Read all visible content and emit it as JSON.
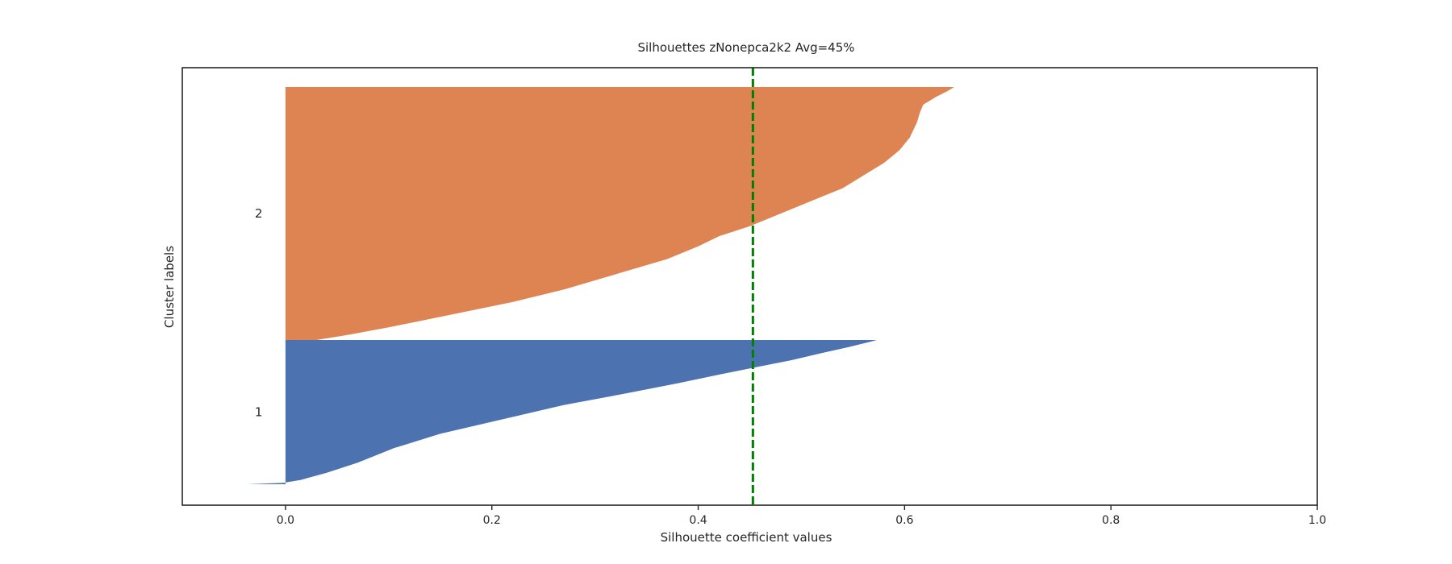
{
  "chart_data": {
    "type": "bar",
    "title": "Silhouettes zNonepca2k2 Avg=45%",
    "xlabel": "Silhouette coefficient values",
    "ylabel": "Cluster labels",
    "xlim": [
      -0.1,
      1.0
    ],
    "xticks": [
      0.0,
      0.2,
      0.4,
      0.6,
      0.8,
      1.0
    ],
    "xtick_labels": [
      "0.0",
      "0.2",
      "0.4",
      "0.6",
      "0.8",
      "1.0"
    ],
    "average_silhouette": 0.453,
    "grid": false,
    "clusters": [
      {
        "label": "1",
        "color": "#4c72b0",
        "size_fraction": 0.363,
        "profile": [
          [
            0.0,
            -0.037
          ],
          [
            0.01,
            -0.002
          ],
          [
            0.03,
            0.015
          ],
          [
            0.08,
            0.04
          ],
          [
            0.15,
            0.07
          ],
          [
            0.25,
            0.105
          ],
          [
            0.35,
            0.15
          ],
          [
            0.45,
            0.21
          ],
          [
            0.55,
            0.27
          ],
          [
            0.63,
            0.33
          ],
          [
            0.7,
            0.38
          ],
          [
            0.76,
            0.42
          ],
          [
            0.81,
            0.455
          ],
          [
            0.86,
            0.49
          ],
          [
            0.91,
            0.52
          ],
          [
            0.95,
            0.545
          ],
          [
            0.985,
            0.565
          ],
          [
            1.0,
            0.573
          ]
        ]
      },
      {
        "label": "2",
        "color": "#dd8452",
        "size_fraction": 0.637,
        "profile": [
          [
            0.0,
            0.03
          ],
          [
            0.02,
            0.06
          ],
          [
            0.05,
            0.1
          ],
          [
            0.1,
            0.16
          ],
          [
            0.15,
            0.22
          ],
          [
            0.2,
            0.27
          ],
          [
            0.26,
            0.32
          ],
          [
            0.32,
            0.37
          ],
          [
            0.37,
            0.4
          ],
          [
            0.41,
            0.42
          ],
          [
            0.45,
            0.45
          ],
          [
            0.5,
            0.48
          ],
          [
            0.55,
            0.51
          ],
          [
            0.6,
            0.54
          ],
          [
            0.65,
            0.56
          ],
          [
            0.7,
            0.58
          ],
          [
            0.75,
            0.595
          ],
          [
            0.8,
            0.605
          ],
          [
            0.86,
            0.612
          ],
          [
            0.9,
            0.615
          ],
          [
            0.93,
            0.618
          ],
          [
            0.96,
            0.63
          ],
          [
            0.985,
            0.642
          ],
          [
            1.0,
            0.648
          ]
        ]
      }
    ],
    "avg_line_color": "#008000"
  }
}
